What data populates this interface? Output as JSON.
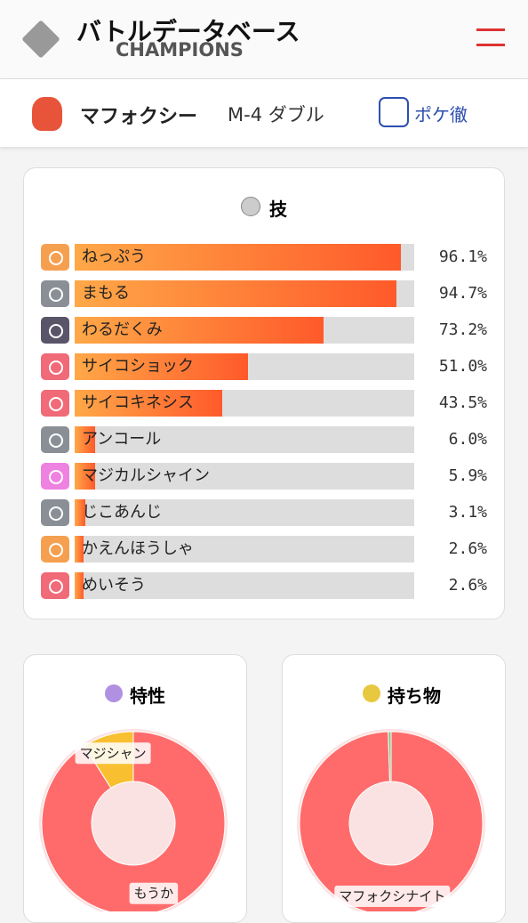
{
  "header": {
    "logo_title": "バトルデータベース",
    "logo_subtitle": "CHAMPIONS"
  },
  "pokemon": {
    "name": "マフォクシー",
    "format": "M-4 ダブル",
    "link": "ポケ徹"
  },
  "moves": {
    "title": "技",
    "items": [
      {
        "name": "ねっぷう",
        "value": 96.1,
        "label": "96.1%",
        "icon_color": "#f5a050"
      },
      {
        "name": "まもる",
        "value": 94.7,
        "label": "94.7%",
        "icon_color": "#8a8f96"
      },
      {
        "name": "わるだくみ",
        "value": 73.2,
        "label": "73.2%",
        "icon_color": "#5a5468"
      },
      {
        "name": "サイコショック",
        "value": 51.0,
        "label": "51.0%",
        "icon_color": "#f06a78"
      },
      {
        "name": "サイコキネシス",
        "value": 43.5,
        "label": "43.5%",
        "icon_color": "#f06a78"
      },
      {
        "name": "アンコール",
        "value": 6.0,
        "label": "6.0%",
        "icon_color": "#8a8f96"
      },
      {
        "name": "マジカルシャイン",
        "value": 5.9,
        "label": "5.9%",
        "icon_color": "#ee82e0"
      },
      {
        "name": "じこあんじ",
        "value": 3.1,
        "label": "3.1%",
        "icon_color": "#8a8f96"
      },
      {
        "name": "かえんほうしゃ",
        "value": 2.6,
        "label": "2.6%",
        "icon_color": "#f5a050"
      },
      {
        "name": "めいそう",
        "value": 2.6,
        "label": "2.6%",
        "icon_color": "#f06a78"
      }
    ]
  },
  "donuts": [
    {
      "title": "特性",
      "segments": [
        {
          "label": "もうか",
          "value": 91,
          "color": "#ff6b6b"
        },
        {
          "label": "マジシャン",
          "value": 9,
          "color": "#f8c030"
        }
      ]
    },
    {
      "title": "持ち物",
      "segments": [
        {
          "label": "マフォクシナイト",
          "value": 99.5,
          "color": "#ff6b6b"
        },
        {
          "value": 0.5,
          "color": "#7cc87c"
        }
      ]
    }
  ]
}
